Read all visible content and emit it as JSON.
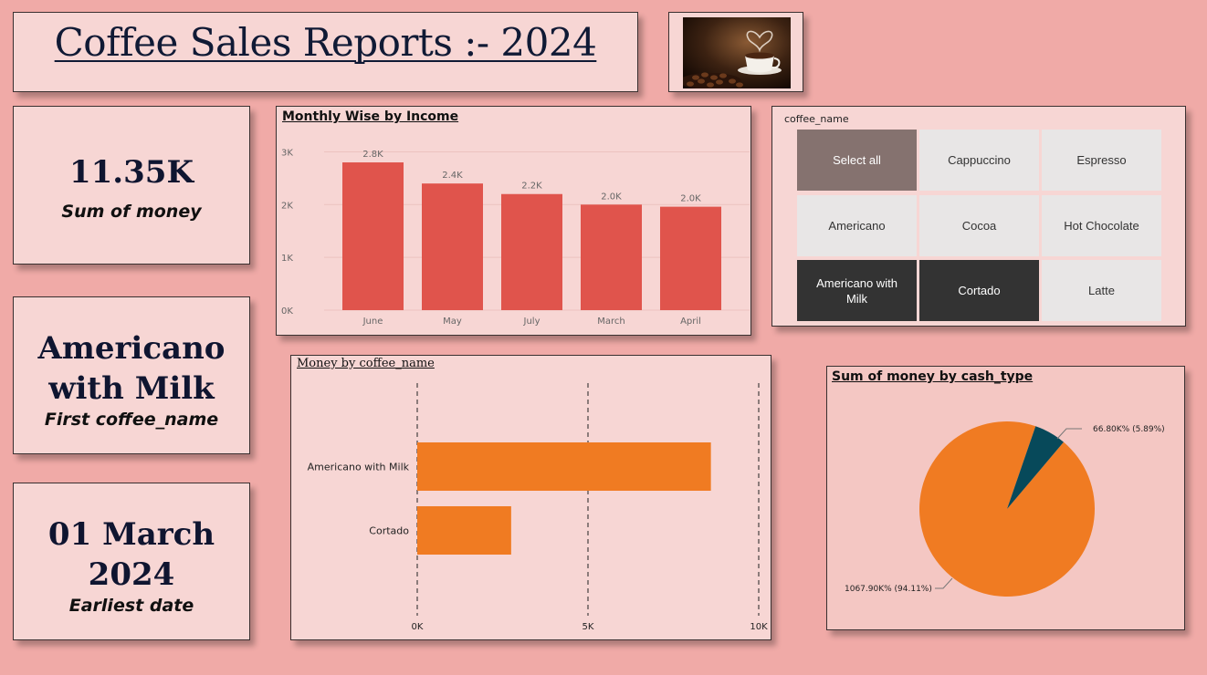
{
  "header": {
    "title": "Coffee Sales Reports :- 2024",
    "image_icon": "coffee-cup-photo"
  },
  "kpis": [
    {
      "value": "11.35K",
      "label": "Sum of money"
    },
    {
      "value_line1": "Americano",
      "value_line2": "with Milk",
      "label": "First coffee_name"
    },
    {
      "value_line1": "01 March",
      "value_line2": "2024",
      "label": "Earliest date"
    }
  ],
  "slicer": {
    "title": "coffee_name",
    "items": [
      {
        "label": "Select all",
        "state": "select-all"
      },
      {
        "label": "Cappuccino",
        "state": "off"
      },
      {
        "label": "Espresso",
        "state": "off"
      },
      {
        "label": "Americano",
        "state": "off"
      },
      {
        "label": "Cocoa",
        "state": "off"
      },
      {
        "label": "Hot Chocolate",
        "state": "off"
      },
      {
        "label": "Americano with Milk",
        "state": "on"
      },
      {
        "label": "Cortado",
        "state": "on"
      },
      {
        "label": "Latte",
        "state": "off"
      }
    ]
  },
  "colors": {
    "bar": "#e0544c",
    "hbar": "#f07b22",
    "pie_main": "#f07b22",
    "pie_minor": "#07495a",
    "background": "#f0aaa7"
  },
  "chart_data": [
    {
      "type": "bar",
      "title": "Monthly Wise by Income",
      "categories": [
        "June",
        "May",
        "July",
        "March",
        "April"
      ],
      "values": [
        2800,
        2400,
        2200,
        2000,
        1960
      ],
      "data_labels": [
        "2.8K",
        "2.4K",
        "2.2K",
        "2.0K",
        "2.0K"
      ],
      "yticks": [
        "0K",
        "1K",
        "2K",
        "3K"
      ],
      "ylim": [
        0,
        3250
      ],
      "grid": true
    },
    {
      "type": "bar",
      "orientation": "horizontal",
      "title": "Money by coffee_name",
      "categories": [
        "Americano with Milk",
        "Cortado"
      ],
      "values": [
        8600,
        2750
      ],
      "xticks": [
        "0K",
        "5K",
        "10K"
      ],
      "xlim": [
        0,
        10000
      ],
      "grid": true
    },
    {
      "type": "pie",
      "title": "Sum of money by cash_type",
      "slices": [
        {
          "value": 1067.9,
          "percent": 94.11,
          "label": "1067.90K% (94.11%)"
        },
        {
          "value": 66.8,
          "percent": 5.89,
          "label": "66.80K% (5.89%)"
        }
      ]
    }
  ]
}
